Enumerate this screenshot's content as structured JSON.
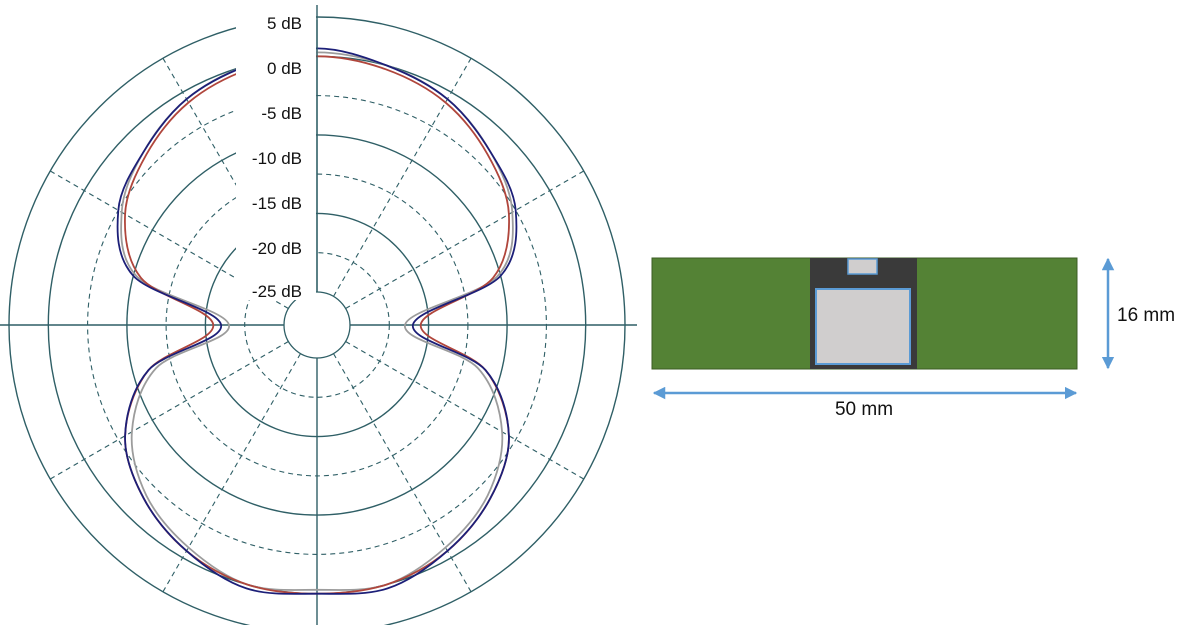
{
  "polar_plot": {
    "ring_labels": [
      "5 dB",
      "0 dB",
      "-5 dB",
      "-10 dB",
      "-15 dB",
      "-20 dB",
      "-25 dB"
    ],
    "ring_levels_db": [
      5,
      0,
      -5,
      -10,
      -15,
      -20,
      -25
    ],
    "colors": {
      "grid": "#2f5f66",
      "trace_blue": "#1c1f78",
      "trace_red": "#b0463c",
      "trace_gray": "#9c9c9c"
    }
  },
  "chart_data": {
    "type": "polar",
    "title": "",
    "radial_unit": "dB",
    "radial_ticks": [
      5,
      0,
      -5,
      -10,
      -15,
      -20,
      -25
    ],
    "radial_range": [
      -30,
      5
    ],
    "angle_unit": "degrees (0 = up, clockwise)",
    "angles": [
      0,
      15,
      30,
      45,
      60,
      75,
      90,
      105,
      120,
      135,
      150,
      165,
      180,
      195,
      210,
      225,
      240,
      255,
      270,
      285,
      300,
      315,
      330,
      345
    ],
    "series": [
      {
        "color": "#1c1f78",
        "values": [
          1,
          0,
          -1,
          -3,
          -5,
          -10,
          -22,
          -12,
          -6,
          -3,
          -1,
          0.5,
          0,
          0.5,
          -1,
          -3,
          -6,
          -12,
          -22,
          -10,
          -5,
          -3,
          -1,
          0
        ]
      },
      {
        "color": "#b0463c",
        "values": [
          0,
          -0.5,
          -1.5,
          -3.5,
          -6,
          -11,
          -21,
          -12,
          -6,
          -3,
          -1,
          0,
          0,
          0,
          -1,
          -3,
          -6,
          -12,
          -21,
          -11,
          -6,
          -3.5,
          -1.5,
          -0.5
        ]
      },
      {
        "color": "#9c9c9c",
        "values": [
          0.5,
          0,
          -1,
          -3,
          -5.5,
          -10.5,
          -23,
          -13,
          -7,
          -3.5,
          -1.5,
          0,
          -0.5,
          0,
          -1.5,
          -3.5,
          -7,
          -13,
          -23,
          -10.5,
          -5.5,
          -3,
          -1,
          0
        ]
      }
    ]
  },
  "device": {
    "board_color": "#548235",
    "module_color": "#3a3a3a",
    "component_fill": "#d0cece",
    "component_stroke": "#5b9bd5",
    "arrow_color": "#5b9bd5",
    "width_label": "50 mm",
    "height_label": "16 mm"
  }
}
